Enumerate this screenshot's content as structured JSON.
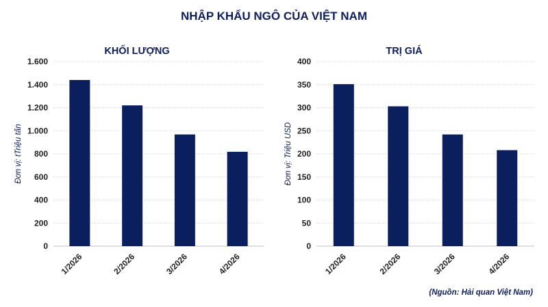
{
  "title": "NHẬP KHẨU NGÔ CỦA VIỆT NAM",
  "source": "(Nguồn: Hải quan Việt Nam)",
  "colors": {
    "bar": "#0b1f5e",
    "text": "#0e1d5c"
  },
  "chart_data": [
    {
      "type": "bar",
      "title": "KHỐI LƯỢNG",
      "ylabel": "Đơn vị: tTriệu tấn",
      "categories": [
        "1/2026",
        "2/2026",
        "3/2026",
        "4/2026"
      ],
      "values": [
        1440,
        1220,
        968,
        818
      ],
      "ylim": [
        0,
        1600
      ],
      "yticks": [
        0,
        200,
        400,
        600,
        800,
        1000,
        1200,
        1400,
        1600
      ],
      "ytick_labels": [
        "0",
        "200",
        "400",
        "600",
        "800",
        "1.000",
        "1.200",
        "1.400",
        "1.600"
      ],
      "grid": true
    },
    {
      "type": "bar",
      "title": "TRỊ GIÁ",
      "ylabel": "Đơn vị: Triệu USD",
      "categories": [
        "1/2026",
        "2/2026",
        "3/2026",
        "4/2026"
      ],
      "values": [
        351,
        303,
        242,
        208
      ],
      "ylim": [
        0,
        400
      ],
      "yticks": [
        0,
        50,
        100,
        150,
        200,
        250,
        300,
        350,
        400
      ],
      "ytick_labels": [
        "0",
        "50",
        "100",
        "150",
        "200",
        "250",
        "300",
        "350",
        "400"
      ],
      "grid": true
    }
  ]
}
